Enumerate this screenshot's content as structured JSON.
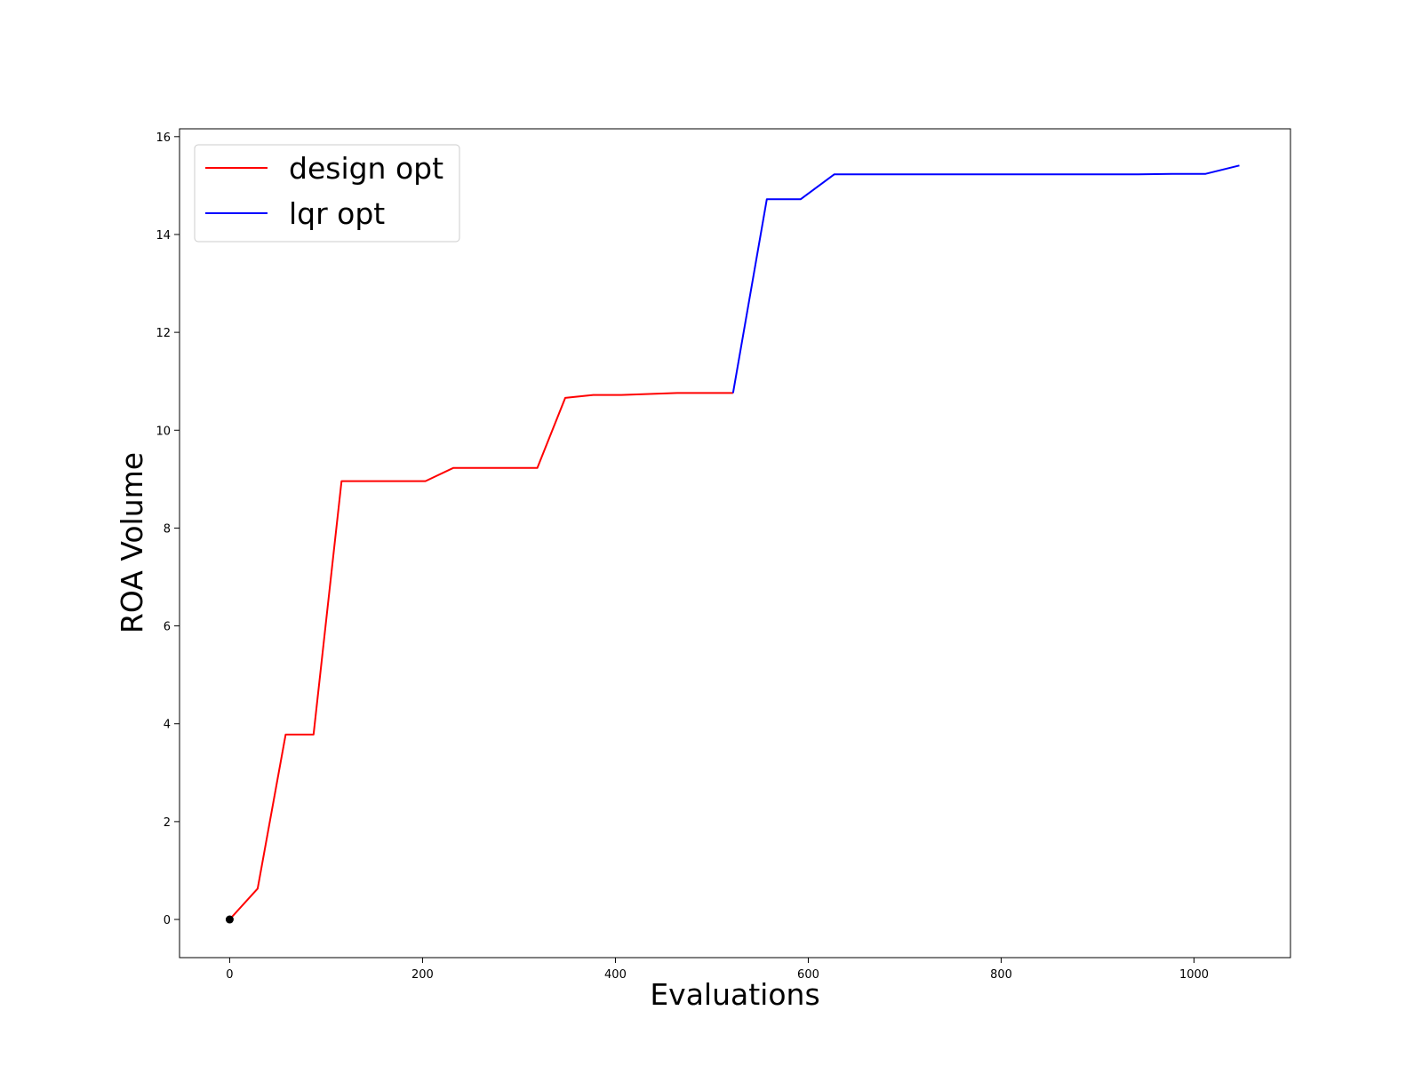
{
  "chart_data": {
    "type": "line",
    "title": "",
    "xlabel": "Evaluations",
    "ylabel": "ROA Volume",
    "xlim": [
      -52,
      1100
    ],
    "ylim": [
      -0.78,
      16.16
    ],
    "xticks": [
      0,
      200,
      400,
      600,
      800,
      1000
    ],
    "yticks": [
      0,
      2,
      4,
      6,
      8,
      10,
      12,
      14,
      16
    ],
    "grid": false,
    "legend_position": "top-left",
    "series": [
      {
        "name": "design opt",
        "color": "#ff0000",
        "points": [
          [
            0,
            0.0
          ],
          [
            29,
            0.63
          ],
          [
            58,
            3.78
          ],
          [
            87,
            3.78
          ],
          [
            116,
            8.96
          ],
          [
            145,
            8.96
          ],
          [
            174,
            8.96
          ],
          [
            203,
            8.96
          ],
          [
            232,
            9.23
          ],
          [
            261,
            9.23
          ],
          [
            290,
            9.23
          ],
          [
            319,
            9.23
          ],
          [
            348,
            10.66
          ],
          [
            377,
            10.72
          ],
          [
            406,
            10.72
          ],
          [
            435,
            10.74
          ],
          [
            464,
            10.76
          ],
          [
            493,
            10.76
          ],
          [
            522,
            10.76
          ]
        ]
      },
      {
        "name": "lqr opt",
        "color": "#0000ff",
        "points": [
          [
            522,
            10.76
          ],
          [
            557,
            14.72
          ],
          [
            592,
            14.72
          ],
          [
            627,
            15.23
          ],
          [
            662,
            15.23
          ],
          [
            697,
            15.23
          ],
          [
            732,
            15.23
          ],
          [
            767,
            15.23
          ],
          [
            802,
            15.23
          ],
          [
            837,
            15.23
          ],
          [
            872,
            15.23
          ],
          [
            907,
            15.23
          ],
          [
            942,
            15.23
          ],
          [
            977,
            15.24
          ],
          [
            1012,
            15.24
          ],
          [
            1047,
            15.41
          ]
        ]
      }
    ],
    "markers": [
      {
        "x": 0,
        "y": 0,
        "color": "#000000"
      }
    ]
  }
}
